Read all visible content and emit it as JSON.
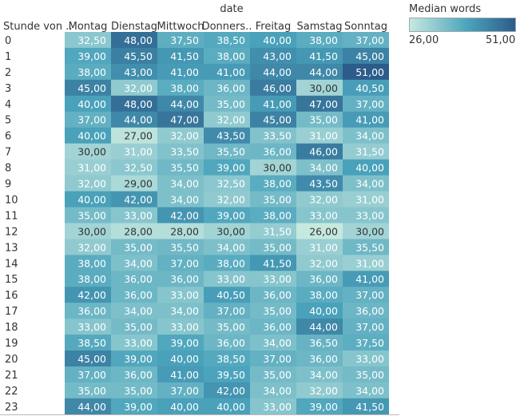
{
  "chart_data": {
    "type": "heatmap",
    "column_header": "date",
    "row_header": "Stunde von ..",
    "columns": [
      "Montag",
      "Dienstag",
      "Mittwoch",
      "Donners..",
      "Freitag",
      "Samstag",
      "Sonntag"
    ],
    "rows": [
      "0",
      "1",
      "2",
      "3",
      "4",
      "5",
      "6",
      "7",
      "8",
      "9",
      "10",
      "11",
      "12",
      "13",
      "14",
      "15",
      "16",
      "17",
      "18",
      "19",
      "20",
      "21",
      "22",
      "23"
    ],
    "values": [
      [
        32.5,
        48,
        37.5,
        38.5,
        40,
        38,
        37
      ],
      [
        39,
        45.5,
        41.5,
        38,
        43,
        41.5,
        45
      ],
      [
        38,
        43,
        41,
        41,
        44,
        44,
        51
      ],
      [
        45,
        32,
        38,
        36,
        46,
        30,
        40.5
      ],
      [
        40,
        48,
        44,
        35,
        41,
        47,
        37
      ],
      [
        37,
        44,
        47,
        32,
        45,
        35,
        41
      ],
      [
        40,
        27,
        32,
        43.5,
        33.5,
        31,
        34
      ],
      [
        30,
        31,
        33.5,
        35.5,
        36,
        46,
        31.5
      ],
      [
        31,
        32.5,
        35.5,
        39,
        30,
        34,
        40
      ],
      [
        32,
        29,
        34,
        32.5,
        38,
        43.5,
        34
      ],
      [
        40,
        42,
        34,
        32,
        35,
        32,
        31
      ],
      [
        35,
        33,
        42,
        39,
        38,
        33,
        33
      ],
      [
        30,
        28,
        28,
        30,
        31.5,
        26,
        30
      ],
      [
        32,
        35,
        35.5,
        34,
        35,
        31,
        35.5
      ],
      [
        38,
        34,
        37,
        38,
        41.5,
        32,
        31
      ],
      [
        38,
        36,
        36,
        33,
        33,
        36,
        41
      ],
      [
        42,
        36,
        33,
        40.5,
        36,
        38,
        37
      ],
      [
        36,
        34,
        34,
        37,
        35,
        40,
        36
      ],
      [
        33,
        35,
        33,
        35,
        36,
        44,
        37
      ],
      [
        38.5,
        33,
        39,
        36,
        34,
        36.5,
        37.5
      ],
      [
        45,
        39,
        40,
        38.5,
        37,
        36,
        33
      ],
      [
        37,
        36,
        41,
        39.5,
        35,
        34,
        35
      ],
      [
        35,
        35,
        37,
        42,
        34,
        32,
        34
      ],
      [
        44,
        39,
        40,
        40,
        33,
        39,
        41.5
      ]
    ],
    "value_labels": [
      [
        "32,50",
        "48,00",
        "37,50",
        "38,50",
        "40,00",
        "38,00",
        "37,00"
      ],
      [
        "39,00",
        "45,50",
        "41,50",
        "38,00",
        "43,00",
        "41,50",
        "45,00"
      ],
      [
        "38,00",
        "43,00",
        "41,00",
        "41,00",
        "44,00",
        "44,00",
        "51,00"
      ],
      [
        "45,00",
        "32,00",
        "38,00",
        "36,00",
        "46,00",
        "30,00",
        "40,50"
      ],
      [
        "40,00",
        "48,00",
        "44,00",
        "35,00",
        "41,00",
        "47,00",
        "37,00"
      ],
      [
        "37,00",
        "44,00",
        "47,00",
        "32,00",
        "45,00",
        "35,00",
        "41,00"
      ],
      [
        "40,00",
        "27,00",
        "32,00",
        "43,50",
        "33,50",
        "31,00",
        "34,00"
      ],
      [
        "30,00",
        "31,00",
        "33,50",
        "35,50",
        "36,00",
        "46,00",
        "31,50"
      ],
      [
        "31,00",
        "32,50",
        "35,50",
        "39,00",
        "30,00",
        "34,00",
        "40,00"
      ],
      [
        "32,00",
        "29,00",
        "34,00",
        "32,50",
        "38,00",
        "43,50",
        "34,00"
      ],
      [
        "40,00",
        "42,00",
        "34,00",
        "32,00",
        "35,00",
        "32,00",
        "31,00"
      ],
      [
        "35,00",
        "33,00",
        "42,00",
        "39,00",
        "38,00",
        "33,00",
        "33,00"
      ],
      [
        "30,00",
        "28,00",
        "28,00",
        "30,00",
        "31,50",
        "26,00",
        "30,00"
      ],
      [
        "32,00",
        "35,00",
        "35,50",
        "34,00",
        "35,00",
        "31,00",
        "35,50"
      ],
      [
        "38,00",
        "34,00",
        "37,00",
        "38,00",
        "41,50",
        "32,00",
        "31,00"
      ],
      [
        "38,00",
        "36,00",
        "36,00",
        "33,00",
        "33,00",
        "36,00",
        "41,00"
      ],
      [
        "42,00",
        "36,00",
        "33,00",
        "40,50",
        "36,00",
        "38,00",
        "37,00"
      ],
      [
        "36,00",
        "34,00",
        "34,00",
        "37,00",
        "35,00",
        "40,00",
        "36,00"
      ],
      [
        "33,00",
        "35,00",
        "33,00",
        "35,00",
        "36,00",
        "44,00",
        "37,00"
      ],
      [
        "38,50",
        "33,00",
        "39,00",
        "36,00",
        "34,00",
        "36,50",
        "37,50"
      ],
      [
        "45,00",
        "39,00",
        "40,00",
        "38,50",
        "37,00",
        "36,00",
        "33,00"
      ],
      [
        "37,00",
        "36,00",
        "41,00",
        "39,50",
        "35,00",
        "34,00",
        "35,00"
      ],
      [
        "35,00",
        "35,00",
        "37,00",
        "42,00",
        "34,00",
        "32,00",
        "34,00"
      ],
      [
        "44,00",
        "39,00",
        "40,00",
        "40,00",
        "33,00",
        "39,00",
        "41,50"
      ]
    ],
    "color_scale": {
      "title": "Median words",
      "min": 26,
      "max": 51,
      "min_label": "26,00",
      "max_label": "51,00",
      "low_color": "#c6e8df",
      "mid_color": "#4aa3bb",
      "high_color": "#2c5c8a"
    }
  }
}
